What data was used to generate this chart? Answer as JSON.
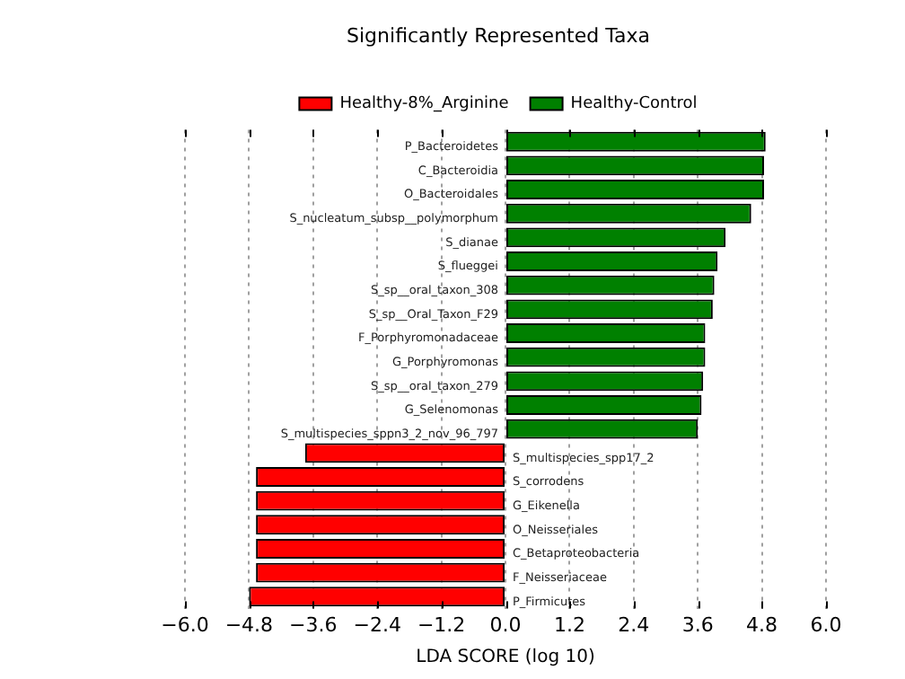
{
  "chart_data": {
    "type": "bar",
    "orientation": "horizontal",
    "title": "Significantly Represented Taxa",
    "xlabel": "LDA SCORE (log 10)",
    "categories": [
      "P_Bacteroidetes",
      "C_Bacteroidia",
      "O_Bacteroidales",
      "S_nucleatum_subsp__polymorphum",
      "S_dianae",
      "S_flueggei",
      "S_sp__oral_taxon_308",
      "S_sp__Oral_Taxon_F29",
      "F_Porphyromonadaceae",
      "G_Porphyromonas",
      "S_sp__oral_taxon_279",
      "G_Selenomonas",
      "S_multispecies_sppn3_2_nov_96_797",
      "S_multispecies_spp17_2",
      "S_corrodens",
      "G_Eikenella",
      "O_Neisseriales",
      "C_Betaproteobacteria",
      "F_Neisseriaceae",
      "P_Firmicutes"
    ],
    "series": [
      {
        "name": "Healthy-8%_Arginine",
        "color": "#ff0000",
        "values": [
          null,
          null,
          null,
          null,
          null,
          null,
          null,
          null,
          null,
          null,
          null,
          null,
          null,
          -3.75,
          -4.67,
          -4.67,
          -4.67,
          -4.67,
          -4.67,
          -4.8
        ]
      },
      {
        "name": "Healthy-Control",
        "color": "#008000",
        "values": [
          4.87,
          4.84,
          4.84,
          4.6,
          4.12,
          3.97,
          3.91,
          3.88,
          3.74,
          3.74,
          3.7,
          3.67,
          3.6,
          null,
          null,
          null,
          null,
          null,
          null,
          null
        ]
      }
    ],
    "xlim": [
      -6,
      6
    ],
    "xticks": [
      {
        "value": -6,
        "label": "−6.0"
      },
      {
        "value": -4.8,
        "label": "−4.8"
      },
      {
        "value": -3.6,
        "label": "−3.6"
      },
      {
        "value": -2.4,
        "label": "−2.4"
      },
      {
        "value": -1.2,
        "label": "−1.2"
      },
      {
        "value": 0,
        "label": "0.0"
      },
      {
        "value": 1.2,
        "label": "1.2"
      },
      {
        "value": 2.4,
        "label": "2.4"
      },
      {
        "value": 3.6,
        "label": "3.6"
      },
      {
        "value": 4.8,
        "label": "4.8"
      },
      {
        "value": 6,
        "label": "6.0"
      }
    ],
    "grid": "x",
    "legend": "top"
  }
}
